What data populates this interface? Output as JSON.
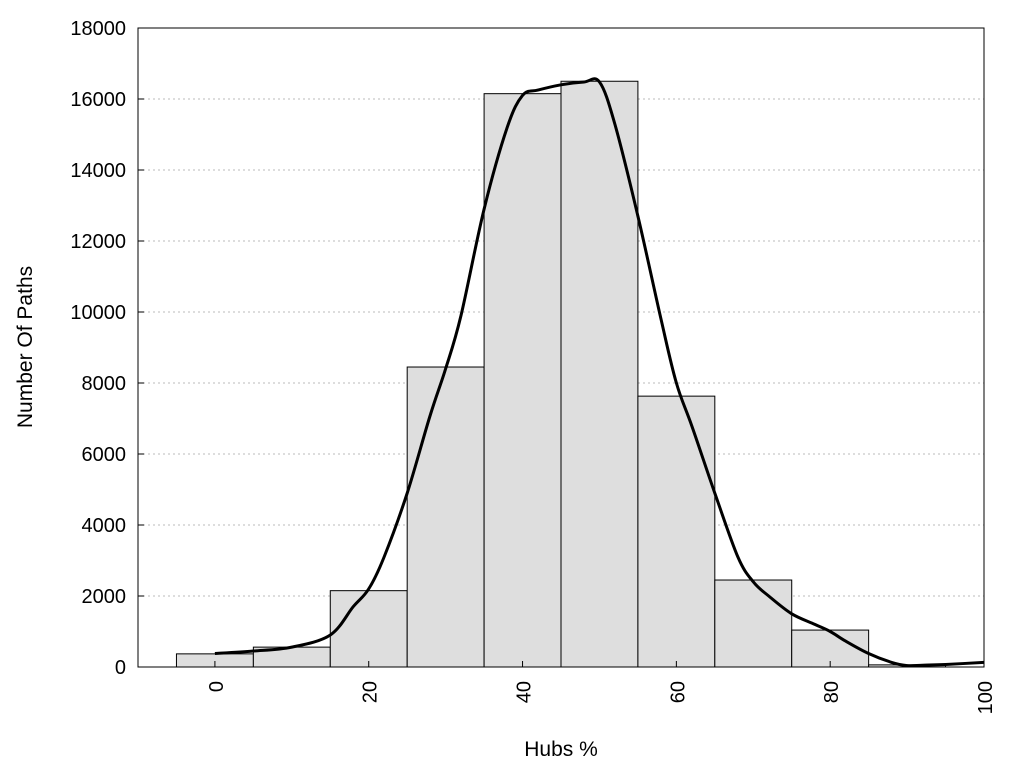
{
  "chart_data": {
    "type": "bar",
    "title": "",
    "xlabel": "Hubs %",
    "ylabel": "Number Of Paths",
    "xlim": [
      -10,
      100
    ],
    "ylim": [
      0,
      18000
    ],
    "bin_width": 10,
    "x_ticks": [
      0,
      20,
      40,
      60,
      80,
      100
    ],
    "y_ticks": [
      0,
      2000,
      4000,
      6000,
      8000,
      10000,
      12000,
      14000,
      16000,
      18000
    ],
    "grid": "horizontal dotted",
    "legend": "none",
    "bars": {
      "name": "",
      "x": [
        0,
        10,
        20,
        30,
        40,
        50,
        60,
        70,
        80,
        90
      ],
      "values": [
        370,
        560,
        2150,
        8450,
        16150,
        16500,
        7630,
        2450,
        1040,
        60
      ],
      "fill": "#dedede",
      "stroke": "#000000"
    },
    "curve": {
      "name": "",
      "x": [
        0,
        5,
        10,
        15,
        18,
        20,
        22,
        25,
        28,
        30,
        32,
        35,
        38,
        40,
        42,
        45,
        48,
        50,
        52,
        55,
        58,
        60,
        62,
        65,
        68,
        70,
        72,
        75,
        78,
        80,
        82,
        85,
        88,
        90,
        92,
        95,
        100
      ],
      "values": [
        380,
        450,
        560,
        900,
        1700,
        2200,
        3100,
        4900,
        7100,
        8400,
        9900,
        12900,
        15200,
        16100,
        16250,
        16400,
        16480,
        16480,
        15300,
        12700,
        9800,
        8000,
        6800,
        4900,
        3100,
        2400,
        2000,
        1500,
        1200,
        1000,
        730,
        380,
        130,
        40,
        50,
        70,
        130
      ],
      "color": "#000000"
    }
  }
}
